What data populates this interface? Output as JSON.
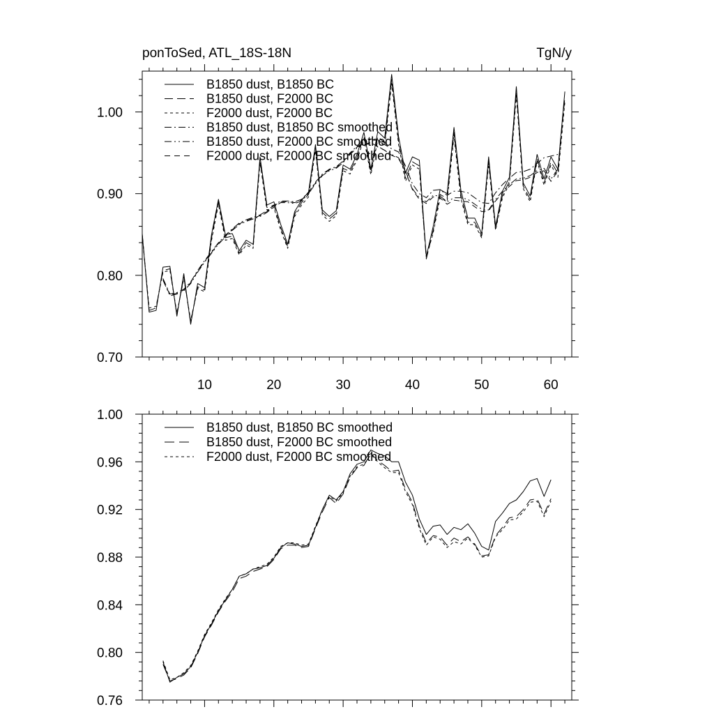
{
  "chart_data": [
    {
      "type": "line",
      "title": "ponToSed, ATL_18S-18N",
      "units": "TgN/y",
      "xlim": [
        1,
        63
      ],
      "ylim": [
        0.7,
        1.05
      ],
      "xticks": [
        10,
        20,
        30,
        40,
        50,
        60
      ],
      "yticks": [
        0.7,
        0.8,
        0.9,
        1.0
      ],
      "x_tick_labels": [
        "10",
        "20",
        "30",
        "40",
        "50",
        "60"
      ],
      "y_tick_labels": [
        "0.70",
        "0.80",
        "0.90",
        "1.00"
      ],
      "legend_position": "top-left",
      "x": [
        1,
        2,
        3,
        4,
        5,
        6,
        7,
        8,
        9,
        10,
        11,
        12,
        13,
        14,
        15,
        16,
        17,
        18,
        19,
        20,
        21,
        22,
        23,
        24,
        25,
        26,
        27,
        28,
        29,
        30,
        31,
        32,
        33,
        34,
        35,
        36,
        37,
        38,
        39,
        40,
        41,
        42,
        43,
        44,
        45,
        46,
        47,
        48,
        49,
        50,
        51,
        52,
        53,
        54,
        55,
        56,
        57,
        58,
        59,
        60,
        61,
        62
      ],
      "series": [
        {
          "name": "B1850 dust, B1850 BC",
          "dash": "",
          "values": [
            0.85,
            0.755,
            0.757,
            0.81,
            0.811,
            0.75,
            0.802,
            0.74,
            0.79,
            0.785,
            0.85,
            0.893,
            0.85,
            0.851,
            0.83,
            0.843,
            0.838,
            0.945,
            0.886,
            0.89,
            0.862,
            0.838,
            0.878,
            0.892,
            0.902,
            0.96,
            0.88,
            0.872,
            0.879,
            0.935,
            0.93,
            0.948,
            0.975,
            0.93,
            0.976,
            0.968,
            1.046,
            0.97,
            0.925,
            0.945,
            0.941,
            0.823,
            0.86,
            0.905,
            0.9,
            0.981,
            0.904,
            0.87,
            0.87,
            0.851,
            0.945,
            0.86,
            0.903,
            0.92,
            1.031,
            0.913,
            0.897,
            0.948,
            0.918,
            0.945,
            0.93,
            1.025
          ]
        },
        {
          "name": "B1850 dust, F2000 BC",
          "dash": "12,6",
          "values": [
            0.851,
            0.757,
            0.76,
            0.806,
            0.808,
            0.752,
            0.798,
            0.743,
            0.786,
            0.782,
            0.846,
            0.89,
            0.846,
            0.848,
            0.827,
            0.84,
            0.835,
            0.941,
            0.883,
            0.886,
            0.858,
            0.835,
            0.875,
            0.889,
            0.899,
            0.956,
            0.877,
            0.869,
            0.876,
            0.931,
            0.927,
            0.944,
            0.97,
            0.926,
            0.97,
            0.962,
            1.04,
            0.964,
            0.919,
            0.939,
            0.934,
            0.82,
            0.855,
            0.899,
            0.894,
            0.975,
            0.898,
            0.865,
            0.865,
            0.848,
            0.94,
            0.857,
            0.898,
            0.915,
            1.025,
            0.909,
            0.893,
            0.943,
            0.913,
            0.939,
            0.925,
            1.018
          ]
        },
        {
          "name": "F2000 dust, F2000 BC",
          "dash": "4,4",
          "values": [
            0.849,
            0.76,
            0.762,
            0.804,
            0.806,
            0.754,
            0.796,
            0.745,
            0.784,
            0.78,
            0.843,
            0.887,
            0.843,
            0.845,
            0.825,
            0.837,
            0.833,
            0.938,
            0.88,
            0.883,
            0.855,
            0.833,
            0.872,
            0.886,
            0.896,
            0.953,
            0.874,
            0.866,
            0.873,
            0.928,
            0.924,
            0.941,
            0.967,
            0.923,
            0.966,
            0.958,
            1.035,
            0.96,
            0.915,
            0.935,
            0.93,
            0.822,
            0.852,
            0.895,
            0.89,
            0.97,
            0.894,
            0.862,
            0.862,
            0.846,
            0.936,
            0.855,
            0.895,
            0.912,
            1.02,
            0.906,
            0.89,
            0.94,
            0.91,
            0.935,
            0.92,
            1.012
          ]
        },
        {
          "name": "B1850 dust, B1850 BC smoothed",
          "dash": "10,4,2,4",
          "values": [
            null,
            null,
            null,
            0.796,
            0.777,
            0.779,
            0.783,
            0.792,
            0.806,
            0.818,
            0.829,
            0.84,
            0.849,
            0.857,
            0.864,
            0.868,
            0.871,
            0.874,
            0.879,
            0.886,
            0.891,
            0.891,
            0.89,
            0.893,
            0.902,
            0.914,
            0.924,
            0.93,
            0.933,
            0.94,
            0.95,
            0.958,
            0.961,
            0.967,
            0.964,
            0.96,
            0.955,
            0.951,
            0.934,
            0.912,
            0.9,
            0.895,
            0.904,
            0.905,
            0.898,
            0.903,
            0.903,
            0.901,
            0.895,
            0.889,
            0.888,
            0.901,
            0.911,
            0.919,
            0.926,
            0.927,
            0.93,
            0.937,
            0.944,
            0.946,
            0.948,
            null
          ]
        },
        {
          "name": "B1850 dust, F2000 BC smoothed",
          "dash": "10,4,2,4,2,4",
          "values": [
            null,
            null,
            null,
            0.794,
            0.775,
            0.777,
            0.781,
            0.79,
            0.804,
            0.816,
            0.827,
            0.838,
            0.847,
            0.855,
            0.862,
            0.866,
            0.869,
            0.872,
            0.877,
            0.884,
            0.889,
            0.889,
            0.888,
            0.891,
            0.9,
            0.912,
            0.922,
            0.928,
            0.931,
            0.938,
            0.948,
            0.956,
            0.959,
            0.962,
            0.958,
            0.953,
            0.948,
            0.944,
            0.928,
            0.906,
            0.895,
            0.89,
            0.898,
            0.897,
            0.89,
            0.895,
            0.895,
            0.893,
            0.887,
            0.881,
            0.88,
            0.893,
            0.903,
            0.911,
            0.918,
            0.919,
            0.922,
            0.928,
            0.931,
            0.918,
            0.93,
            null
          ]
        },
        {
          "name": "F2000 dust, F2000 BC smoothed",
          "dash": "8,6",
          "values": [
            null,
            null,
            null,
            0.795,
            0.776,
            0.778,
            0.782,
            0.791,
            0.805,
            0.817,
            0.828,
            0.839,
            0.848,
            0.856,
            0.863,
            0.867,
            0.87,
            0.873,
            0.878,
            0.885,
            0.89,
            0.89,
            0.889,
            0.892,
            0.901,
            0.913,
            0.923,
            0.929,
            0.932,
            0.939,
            0.949,
            0.957,
            0.96,
            0.963,
            0.957,
            0.953,
            0.947,
            0.943,
            0.927,
            0.905,
            0.893,
            0.888,
            0.896,
            0.895,
            0.887,
            0.892,
            0.891,
            0.89,
            0.884,
            0.878,
            0.879,
            0.891,
            0.901,
            0.909,
            0.916,
            0.917,
            0.92,
            0.926,
            0.928,
            0.915,
            0.928,
            null
          ]
        }
      ]
    },
    {
      "type": "line",
      "xlim": [
        1,
        63
      ],
      "ylim": [
        0.76,
        1.0
      ],
      "xticks": [
        10,
        20,
        30,
        40,
        50,
        60
      ],
      "yticks": [
        0.76,
        0.8,
        0.84,
        0.88,
        0.92,
        0.96,
        1.0
      ],
      "y_tick_labels": [
        "0.76",
        "0.80",
        "0.84",
        "0.88",
        "0.92",
        "0.96",
        "1.00"
      ],
      "legend_position": "top-left",
      "x": [
        4,
        5,
        6,
        7,
        8,
        9,
        10,
        11,
        12,
        13,
        14,
        15,
        16,
        17,
        18,
        19,
        20,
        21,
        22,
        23,
        24,
        25,
        26,
        27,
        28,
        29,
        30,
        31,
        32,
        33,
        34,
        35,
        36,
        37,
        38,
        39,
        40,
        41,
        42,
        43,
        44,
        45,
        46,
        47,
        48,
        49,
        50,
        51,
        52,
        53,
        54,
        55,
        56,
        57,
        58,
        59,
        60
      ],
      "series": [
        {
          "name": "B1850 dust, B1850 BC smoothed",
          "dash": "",
          "values": [
            0.792,
            0.775,
            0.779,
            0.782,
            0.788,
            0.8,
            0.814,
            0.824,
            0.835,
            0.844,
            0.853,
            0.864,
            0.866,
            0.87,
            0.871,
            0.873,
            0.879,
            0.888,
            0.892,
            0.891,
            0.889,
            0.89,
            0.905,
            0.92,
            0.932,
            0.928,
            0.935,
            0.95,
            0.958,
            0.96,
            0.97,
            0.967,
            0.965,
            0.96,
            0.96,
            0.943,
            0.932,
            0.912,
            0.899,
            0.906,
            0.907,
            0.899,
            0.905,
            0.903,
            0.908,
            0.9,
            0.889,
            0.886,
            0.91,
            0.917,
            0.925,
            0.928,
            0.935,
            0.944,
            0.946,
            0.931,
            0.945
          ]
        },
        {
          "name": "B1850 dust, F2000 BC smoothed",
          "dash": "14,7",
          "values": [
            0.79,
            0.776,
            0.778,
            0.781,
            0.787,
            0.799,
            0.813,
            0.823,
            0.834,
            0.843,
            0.851,
            0.862,
            0.864,
            0.868,
            0.87,
            0.872,
            0.878,
            0.887,
            0.89,
            0.89,
            0.888,
            0.889,
            0.904,
            0.918,
            0.93,
            0.925,
            0.933,
            0.947,
            0.955,
            0.957,
            0.967,
            0.961,
            0.957,
            0.952,
            0.953,
            0.937,
            0.926,
            0.906,
            0.892,
            0.898,
            0.897,
            0.89,
            0.896,
            0.893,
            0.897,
            0.891,
            0.881,
            0.882,
            0.898,
            0.905,
            0.913,
            0.914,
            0.92,
            0.928,
            0.929,
            0.916,
            0.929
          ]
        },
        {
          "name": "F2000 dust, F2000 BC smoothed",
          "dash": "4,4",
          "values": [
            0.793,
            0.777,
            0.779,
            0.783,
            0.789,
            0.801,
            0.815,
            0.825,
            0.836,
            0.845,
            0.853,
            0.864,
            0.866,
            0.87,
            0.872,
            0.874,
            0.88,
            0.889,
            0.892,
            0.892,
            0.89,
            0.891,
            0.906,
            0.92,
            0.931,
            0.927,
            0.934,
            0.948,
            0.956,
            0.958,
            0.966,
            0.96,
            0.955,
            0.951,
            0.951,
            0.935,
            0.924,
            0.904,
            0.89,
            0.897,
            0.895,
            0.888,
            0.893,
            0.891,
            0.896,
            0.89,
            0.88,
            0.881,
            0.897,
            0.903,
            0.911,
            0.912,
            0.918,
            0.926,
            0.927,
            0.914,
            0.927
          ]
        }
      ]
    }
  ]
}
